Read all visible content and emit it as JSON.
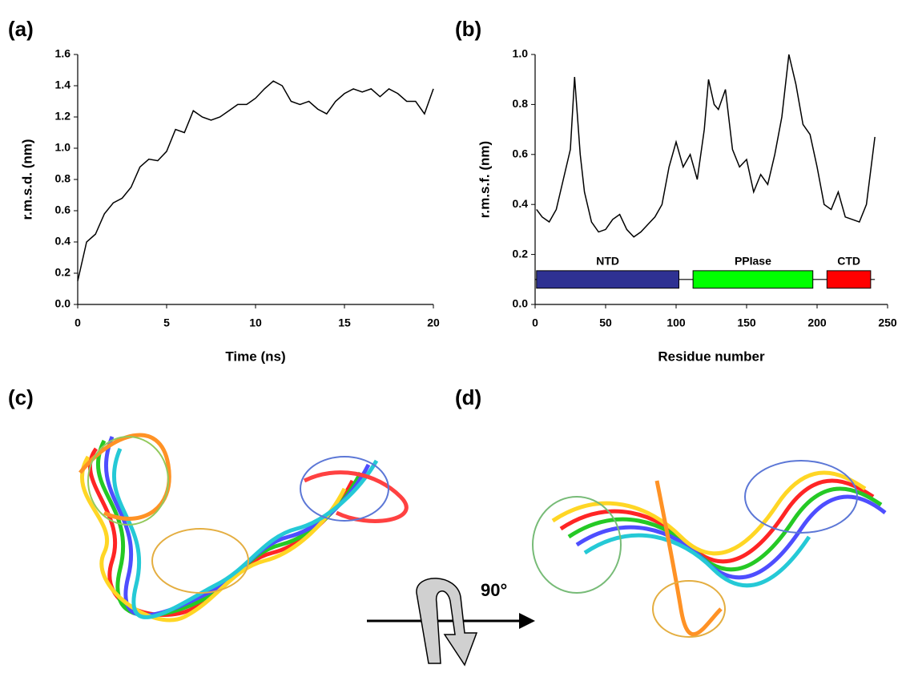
{
  "chart_data": [
    {
      "type": "line",
      "panel_label": "(a)",
      "x_label": "Time (ns)",
      "y_label": "r.m.s.d. (nm)",
      "color": "#000000",
      "x": [
        0,
        0.5,
        1,
        1.5,
        2,
        2.5,
        3,
        3.5,
        4,
        4.5,
        5,
        5.5,
        6,
        6.5,
        7,
        7.5,
        8,
        8.5,
        9,
        9.5,
        10,
        10.5,
        11,
        11.5,
        12,
        12.5,
        13,
        13.5,
        14,
        14.5,
        15,
        15.5,
        16,
        16.5,
        17,
        17.5,
        18,
        18.5,
        19,
        19.5,
        20
      ],
      "values": [
        0.15,
        0.4,
        0.45,
        0.58,
        0.65,
        0.68,
        0.75,
        0.88,
        0.93,
        0.92,
        0.98,
        1.12,
        1.1,
        1.24,
        1.2,
        1.18,
        1.2,
        1.24,
        1.28,
        1.28,
        1.32,
        1.38,
        1.43,
        1.4,
        1.3,
        1.28,
        1.3,
        1.25,
        1.22,
        1.3,
        1.35,
        1.38,
        1.36,
        1.38,
        1.33,
        1.38,
        1.35,
        1.3,
        1.3,
        1.22,
        1.38
      ],
      "xlim": [
        0,
        20
      ],
      "ylim": [
        0,
        1.6
      ],
      "xticks": [
        0,
        5,
        10,
        15,
        20
      ],
      "yticks": [
        {
          "value": 0,
          "label": "0.0"
        },
        {
          "value": 0.2,
          "label": "0.2"
        },
        {
          "value": 0.4,
          "label": "0.4"
        },
        {
          "value": 0.6,
          "label": "0.6"
        },
        {
          "value": 0.8,
          "label": "0.8"
        },
        {
          "value": 1.0,
          "label": "1.0"
        },
        {
          "value": 1.2,
          "label": "1.2"
        },
        {
          "value": 1.4,
          "label": "1.4"
        },
        {
          "value": 1.6,
          "label": "1.6"
        }
      ]
    },
    {
      "type": "line",
      "panel_label": "(b)",
      "x_label": "Residue number",
      "y_label": "r.m.s.f. (nm)",
      "color": "#000000",
      "x": [
        1,
        5,
        10,
        15,
        20,
        25,
        28,
        32,
        35,
        40,
        45,
        50,
        55,
        60,
        65,
        70,
        75,
        80,
        85,
        90,
        95,
        100,
        105,
        110,
        115,
        120,
        123,
        127,
        130,
        135,
        140,
        145,
        150,
        155,
        160,
        165,
        170,
        175,
        180,
        185,
        190,
        195,
        200,
        205,
        210,
        215,
        220,
        225,
        230,
        235,
        241
      ],
      "values": [
        0.38,
        0.35,
        0.33,
        0.38,
        0.5,
        0.62,
        0.91,
        0.6,
        0.45,
        0.33,
        0.29,
        0.3,
        0.34,
        0.36,
        0.3,
        0.27,
        0.29,
        0.32,
        0.35,
        0.4,
        0.55,
        0.65,
        0.55,
        0.6,
        0.5,
        0.7,
        0.9,
        0.8,
        0.78,
        0.86,
        0.62,
        0.55,
        0.58,
        0.45,
        0.52,
        0.48,
        0.6,
        0.75,
        1.0,
        0.88,
        0.72,
        0.68,
        0.55,
        0.4,
        0.38,
        0.45,
        0.35,
        0.34,
        0.33,
        0.4,
        0.67
      ],
      "xlim": [
        0,
        250
      ],
      "ylim": [
        0,
        1.0
      ],
      "xticks": [
        0,
        50,
        100,
        150,
        200,
        250
      ],
      "yticks": [
        {
          "value": 0,
          "label": "0.0"
        },
        {
          "value": 0.2,
          "label": "0.2"
        },
        {
          "value": 0.4,
          "label": "0.4"
        },
        {
          "value": 0.6,
          "label": "0.6"
        },
        {
          "value": 0.8,
          "label": "0.8"
        },
        {
          "value": 1.0,
          "label": "1.0"
        }
      ],
      "domain_line": {
        "start": 0,
        "end": 241,
        "level": 0.1
      },
      "domain_band": [
        0.065,
        0.135
      ],
      "domains": [
        {
          "name": "NTD",
          "start": 1,
          "end": 102,
          "color": "#2e3192"
        },
        {
          "name": "PPIase",
          "start": 112,
          "end": 197,
          "color": "#00ff00"
        },
        {
          "name": "CTD",
          "start": 207,
          "end": 238,
          "color": "#ff0000"
        }
      ]
    }
  ],
  "structures": {
    "labels": [
      "(c)",
      "(d)"
    ],
    "rotation": "90°"
  }
}
